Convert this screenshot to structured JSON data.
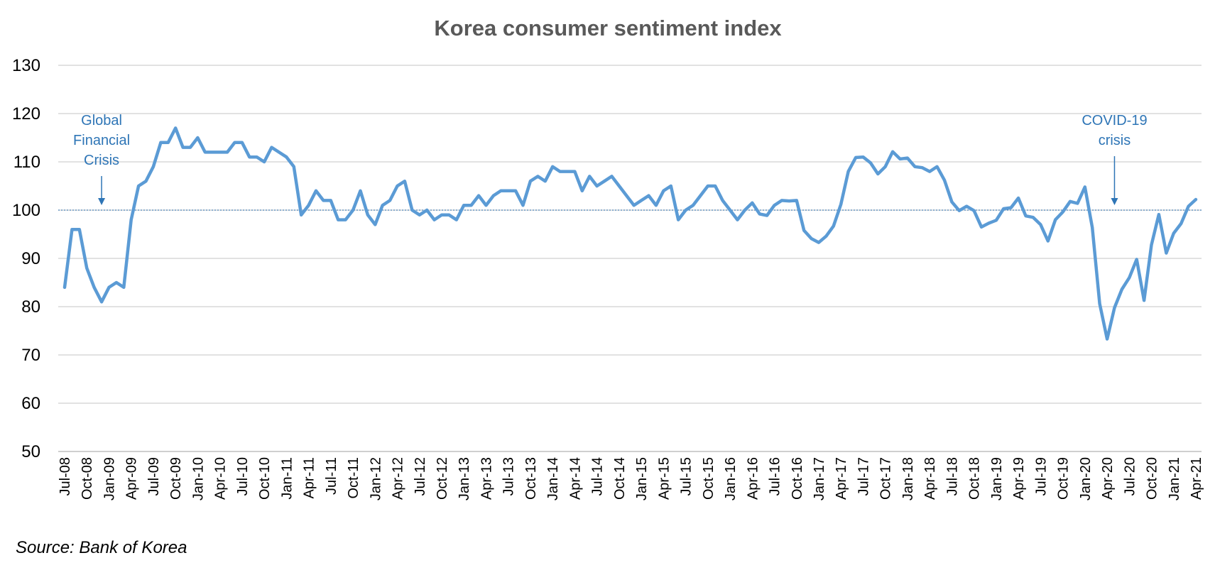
{
  "chart_data": {
    "type": "line",
    "title": "Korea consumer sentiment index",
    "xlabel": "",
    "ylabel": "",
    "ylim": [
      50,
      130
    ],
    "yticks": [
      50,
      60,
      70,
      80,
      90,
      100,
      110,
      120,
      130
    ],
    "grid": true,
    "legend": "none",
    "reference_line": 100,
    "series_color": "#5B9BD5",
    "grid_color": "#D9D9D9",
    "annotation_color": "#2E75B6",
    "x_tick_labels": [
      "Jul-08",
      "Oct-08",
      "Jan-09",
      "Apr-09",
      "Jul-09",
      "Oct-09",
      "Jan-10",
      "Apr-10",
      "Jul-10",
      "Oct-10",
      "Jan-11",
      "Apr-11",
      "Jul-11",
      "Oct-11",
      "Jan-12",
      "Apr-12",
      "Jul-12",
      "Oct-12",
      "Jan-13",
      "Apr-13",
      "Jul-13",
      "Oct-13",
      "Jan-14",
      "Apr-14",
      "Jul-14",
      "Oct-14",
      "Jan-15",
      "Apr-15",
      "Jul-15",
      "Oct-15",
      "Jan-16",
      "Apr-16",
      "Jul-16",
      "Oct-16",
      "Jan-17",
      "Apr-17",
      "Jul-17",
      "Oct-17",
      "Jan-18",
      "Apr-18",
      "Jul-18",
      "Oct-18",
      "Jan-19",
      "Apr-19",
      "Jul-19",
      "Oct-19",
      "Jan-20",
      "Apr-20",
      "Jul-20",
      "Oct-20",
      "Jan-21",
      "Apr-21"
    ],
    "x": [
      "Jul-08",
      "Aug-08",
      "Sep-08",
      "Oct-08",
      "Nov-08",
      "Dec-08",
      "Jan-09",
      "Feb-09",
      "Mar-09",
      "Apr-09",
      "May-09",
      "Jun-09",
      "Jul-09",
      "Aug-09",
      "Sep-09",
      "Oct-09",
      "Nov-09",
      "Dec-09",
      "Jan-10",
      "Feb-10",
      "Mar-10",
      "Apr-10",
      "May-10",
      "Jun-10",
      "Jul-10",
      "Aug-10",
      "Sep-10",
      "Oct-10",
      "Nov-10",
      "Dec-10",
      "Jan-11",
      "Feb-11",
      "Mar-11",
      "Apr-11",
      "May-11",
      "Jun-11",
      "Jul-11",
      "Aug-11",
      "Sep-11",
      "Oct-11",
      "Nov-11",
      "Dec-11",
      "Jan-12",
      "Feb-12",
      "Mar-12",
      "Apr-12",
      "May-12",
      "Jun-12",
      "Jul-12",
      "Aug-12",
      "Sep-12",
      "Oct-12",
      "Nov-12",
      "Dec-12",
      "Jan-13",
      "Feb-13",
      "Mar-13",
      "Apr-13",
      "May-13",
      "Jun-13",
      "Jul-13",
      "Aug-13",
      "Sep-13",
      "Oct-13",
      "Nov-13",
      "Dec-13",
      "Jan-14",
      "Feb-14",
      "Mar-14",
      "Apr-14",
      "May-14",
      "Jun-14",
      "Jul-14",
      "Aug-14",
      "Sep-14",
      "Oct-14",
      "Nov-14",
      "Dec-14",
      "Jan-15",
      "Feb-15",
      "Mar-15",
      "Apr-15",
      "May-15",
      "Jun-15",
      "Jul-15",
      "Aug-15",
      "Sep-15",
      "Oct-15",
      "Nov-15",
      "Dec-15",
      "Jan-16",
      "Feb-16",
      "Mar-16",
      "Apr-16",
      "May-16",
      "Jun-16",
      "Jul-16",
      "Aug-16",
      "Sep-16",
      "Oct-16",
      "Nov-16",
      "Dec-16",
      "Jan-17",
      "Feb-17",
      "Mar-17",
      "Apr-17",
      "May-17",
      "Jun-17",
      "Jul-17",
      "Aug-17",
      "Sep-17",
      "Oct-17",
      "Nov-17",
      "Dec-17",
      "Jan-18",
      "Feb-18",
      "Mar-18",
      "Apr-18",
      "May-18",
      "Jun-18",
      "Jul-18",
      "Aug-18",
      "Sep-18",
      "Oct-18",
      "Nov-18",
      "Dec-18",
      "Jan-19",
      "Feb-19",
      "Mar-19",
      "Apr-19",
      "May-19",
      "Jun-19",
      "Jul-19",
      "Aug-19",
      "Sep-19",
      "Oct-19",
      "Nov-19",
      "Dec-19",
      "Jan-20",
      "Feb-20",
      "Mar-20",
      "Apr-20",
      "May-20",
      "Jun-20",
      "Jul-20",
      "Aug-20",
      "Sep-20",
      "Oct-20",
      "Nov-20",
      "Dec-20",
      "Jan-21",
      "Feb-21",
      "Mar-21",
      "Apr-21"
    ],
    "series": [
      {
        "values": [
          84,
          96,
          96,
          88,
          84,
          81,
          84,
          85,
          84,
          98,
          105,
          106,
          109,
          114,
          114,
          117,
          113,
          113,
          115,
          112,
          112,
          112,
          112,
          114,
          114,
          111,
          111,
          110,
          113,
          112,
          111,
          109,
          99,
          101,
          104,
          102,
          102,
          98,
          98,
          100,
          104,
          99,
          97,
          101,
          102,
          105,
          106,
          100,
          99,
          100,
          98,
          99,
          99,
          98,
          101,
          101,
          103,
          101,
          103,
          104,
          104,
          104,
          101,
          106,
          107,
          106,
          109,
          108,
          108,
          108,
          104,
          107,
          105,
          106,
          107,
          105,
          103,
          101,
          102,
          103,
          101,
          104,
          105,
          98,
          100,
          101,
          103,
          105,
          105,
          102,
          100,
          98,
          100,
          101.5,
          99.2,
          98.9,
          101,
          102,
          101.9,
          102,
          95.8,
          94.1,
          93.3,
          94.6,
          96.7,
          101.2,
          108,
          110.9,
          111,
          109.8,
          107.5,
          109,
          112.1,
          110.6,
          110.8,
          109,
          108.8,
          108,
          109,
          106.2,
          101.7,
          99.9,
          100.8,
          99.9,
          96.5,
          97.3,
          97.9,
          100.3,
          100.5,
          102.5,
          98.8,
          98.5,
          97,
          93.6,
          98,
          99.6,
          101.8,
          101.4,
          104.8,
          96.4,
          80.6,
          73.3,
          79.8,
          83.6,
          86,
          89.8,
          81.3,
          92.8,
          99.1,
          91.1,
          95.2,
          97.2,
          100.8,
          102.2
        ]
      }
    ],
    "annotations": [
      {
        "lines": [
          "Global",
          "Financial",
          "Crisis"
        ],
        "x": "Dec-08"
      },
      {
        "lines": [
          "COVID-19",
          "crisis"
        ],
        "x": "May-20"
      }
    ],
    "source": "Source: Bank of Korea"
  }
}
